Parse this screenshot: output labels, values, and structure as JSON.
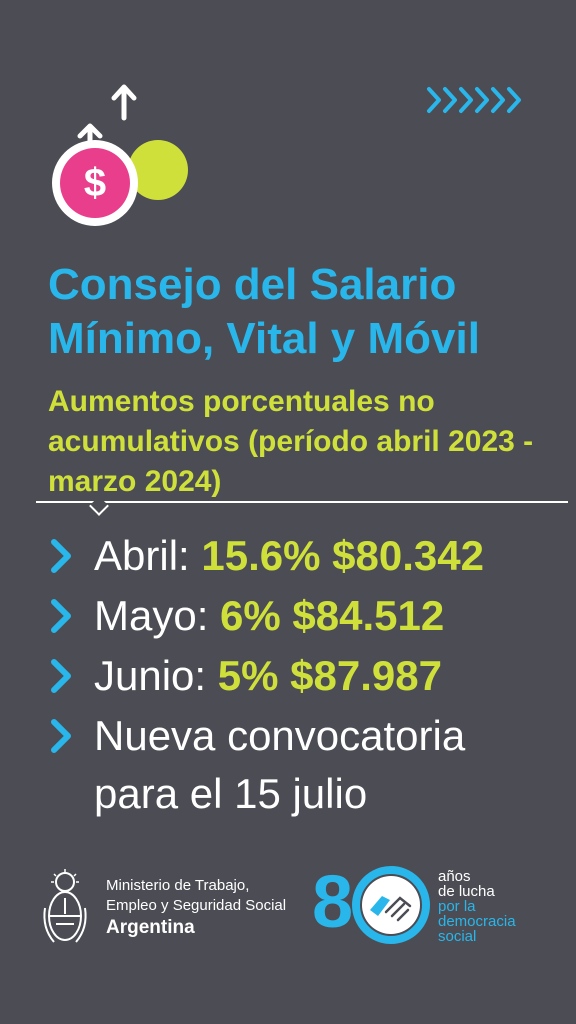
{
  "title": "Consejo del Salario Mínimo, Vital y Móvil",
  "subtitle": "Aumentos porcentuales  no acumulativos (período abril 2023 - marzo 2024)",
  "coin_symbol": "$",
  "items": [
    {
      "month": "Abril:",
      "value": "15.6% $80.342"
    },
    {
      "month": "Mayo:",
      "value": "6% $84.512"
    },
    {
      "month": "Junio:",
      "value": "5% $87.987"
    }
  ],
  "note_line1": "Nueva convocatoria",
  "note_line2": "para el 15 julio",
  "footer": {
    "ministry_line1": "Ministerio de Trabajo,",
    "ministry_line2": "Empleo y Seguridad Social",
    "ministry_line3": "Argentina",
    "anniv_number_8": "8",
    "anniv_line1": "años",
    "anniv_line2": "de lucha",
    "anniv_line3": "por la",
    "anniv_line4": "democracia",
    "anniv_line5": "social"
  },
  "colors": {
    "background": "#4b4c54",
    "cyan": "#29b6ea",
    "lime": "#cfe03a",
    "pink": "#e83e8c",
    "white": "#ffffff"
  },
  "icons": [
    "arrow-up-icon",
    "dollar-coin-icon",
    "chevron-right-icon",
    "coat-of-arms-icon",
    "handshake-icon"
  ]
}
